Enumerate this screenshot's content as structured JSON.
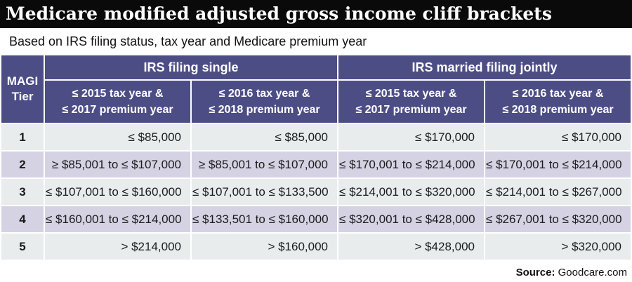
{
  "title": "Medicare modified adjusted gross income cliff brackets",
  "subtitle": "Based on IRS filing status, tax year and Medicare premium year",
  "source": {
    "label": "Source:",
    "value": " Goodcare.com"
  },
  "colors": {
    "purple": "#4d4d86",
    "row-light": "#e8eced",
    "row-shaded": "#d4d2e3",
    "bar-black": "#0a0a0a",
    "text-dark": "#1b1b1b"
  },
  "chart_data": {
    "type": "table",
    "corner_header": "MAGI Tier",
    "group_headers": [
      "IRS filing single",
      "IRS married filing jointly"
    ],
    "column_headers": [
      {
        "line1": "≤ 2015 tax year &",
        "line2": "≤ 2017 premium year"
      },
      {
        "line1": "≤ 2016 tax year &",
        "line2": "≤ 2018 premium year"
      },
      {
        "line1": "≤ 2015 tax year &",
        "line2": "≤ 2017 premium year"
      },
      {
        "line1": "≤ 2016 tax year &",
        "line2": "≤ 2018 premium year"
      }
    ],
    "rows": [
      {
        "tier": "1",
        "cells": [
          "≤ $85,000",
          "≤ $85,000",
          "≤ $170,000",
          "≤ $170,000"
        ]
      },
      {
        "tier": "2",
        "cells": [
          "≥ $85,001 to ≤ $107,000",
          "≥ $85,001 to ≤ $107,000",
          "≤ $170,001 to ≤ $214,000",
          "≤ $170,001 to ≤ $214,000"
        ]
      },
      {
        "tier": "3",
        "cells": [
          "≤ $107,001 to ≤ $160,000",
          "≤ $107,001 to ≤ $133,500",
          "≤ $214,001 to ≤ $320,000",
          "≤ $214,001 to ≤ $267,000"
        ]
      },
      {
        "tier": "4",
        "cells": [
          "≤ $160,001 to ≤ $214,000",
          "≤ $133,501 to ≤ $160,000",
          "≤ $320,001 to ≤ $428,000",
          "≤ $267,001 to ≤ $320,000"
        ]
      },
      {
        "tier": "5",
        "cells": [
          "> $214,000",
          "> $160,000",
          "> $428,000",
          "> $320,000"
        ]
      }
    ]
  }
}
